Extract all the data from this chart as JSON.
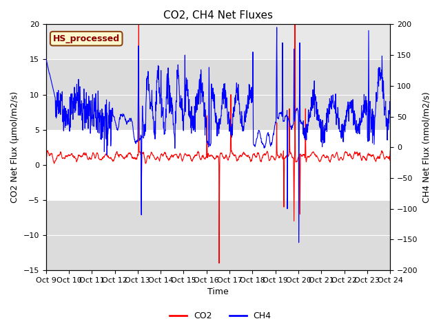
{
  "title": "CO2, CH4 Net Fluxes",
  "ylabel_left": "CO2 Net Flux (μmol/m2/s)",
  "ylabel_right": "CH4 Net Flux (nmol/m2/s)",
  "xlabel": "Time",
  "ylim_left": [
    -15,
    20
  ],
  "ylim_right": [
    -200,
    200
  ],
  "yticks_left": [
    -15,
    -10,
    -5,
    0,
    5,
    10,
    15,
    20
  ],
  "yticks_right": [
    -200,
    -150,
    -100,
    -50,
    0,
    50,
    100,
    150,
    200
  ],
  "xtick_labels": [
    "Oct 9",
    "Oct 10",
    "Oct 11",
    "Oct 12",
    "Oct 13",
    "Oct 14",
    "Oct 15",
    "Oct 16",
    "Oct 17",
    "Oct 18",
    "Oct 19",
    "Oct 20",
    "Oct 21",
    "Oct 22",
    "Oct 23",
    "Oct 24"
  ],
  "annotation_text": "HS_processed",
  "annotation_color": "#8B0000",
  "annotation_bg": "#FFFACD",
  "annotation_border": "#8B4513",
  "co2_color": "#FF0000",
  "ch4_color": "#0000FF",
  "line_width": 0.8,
  "legend_labels": [
    "CO2",
    "CH4"
  ],
  "gray_band_color": "#DCDCDC",
  "plot_bg_color": "#E8E8E8",
  "title_fontsize": 11,
  "axis_label_fontsize": 9,
  "tick_fontsize": 8
}
